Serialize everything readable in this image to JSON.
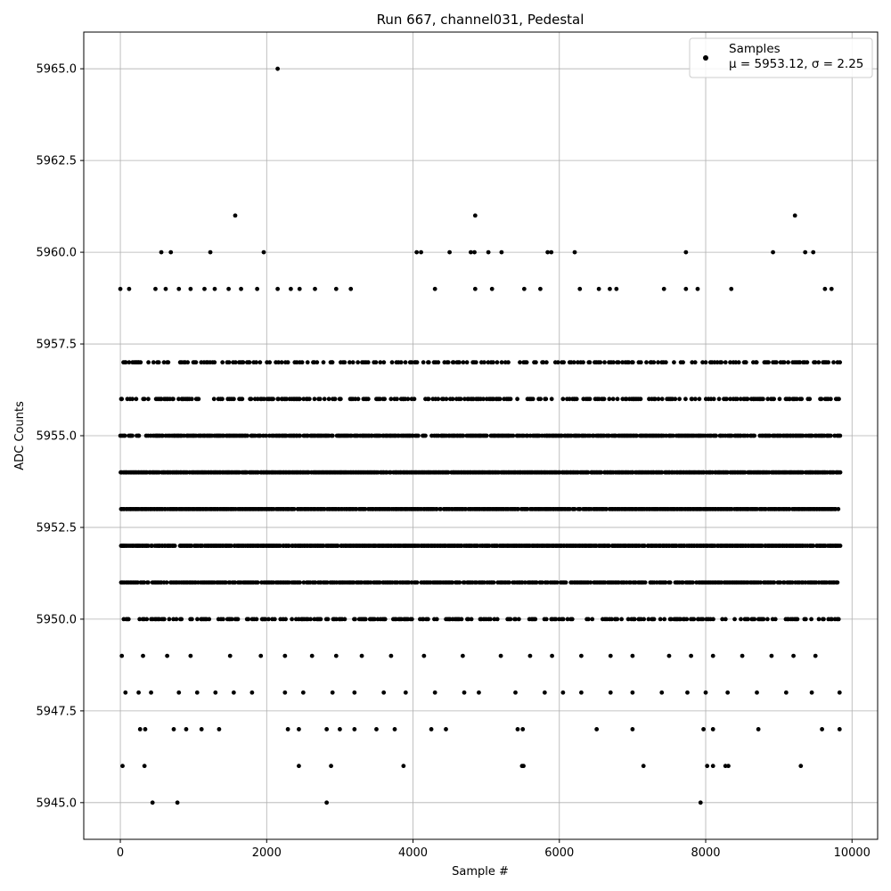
{
  "chart_data": {
    "type": "scatter",
    "title": "Run 667, channel031, Pedestal",
    "xlabel": "Sample #",
    "ylabel": "ADC Counts",
    "xlim": [
      -500,
      10350
    ],
    "ylim": [
      5944,
      5966
    ],
    "x_ticks": [
      0,
      2000,
      4000,
      6000,
      8000,
      10000
    ],
    "y_ticks": [
      5945.0,
      5947.5,
      5950.0,
      5952.5,
      5955.0,
      5957.5,
      5960.0,
      5962.5,
      5965.0
    ],
    "x_tick_labels": [
      "0",
      "2000",
      "4000",
      "6000",
      "8000",
      "10000"
    ],
    "y_tick_labels": [
      "5945.0",
      "5947.5",
      "5950.0",
      "5952.5",
      "5955.0",
      "5957.5",
      "5960.0",
      "5962.5",
      "5965.0"
    ],
    "grid": true,
    "legend_position": "top-right",
    "point_color": "#000000",
    "series": [
      {
        "name": "Samples",
        "stats_label": "μ = 5953.12, σ = 2.25",
        "mean": 5953.12,
        "std": 2.25,
        "n_samples": 9830,
        "x_range": [
          0,
          9830
        ],
        "dense_levels": [
          5950,
          5951,
          5952,
          5953,
          5954,
          5955,
          5956,
          5957
        ],
        "points": [
          {
            "x": 2150,
            "y": 5965
          },
          {
            "x": 1570,
            "y": 5961
          },
          {
            "x": 4850,
            "y": 5961
          },
          {
            "x": 9220,
            "y": 5961
          },
          {
            "x": 560,
            "y": 5960
          },
          {
            "x": 690,
            "y": 5960
          },
          {
            "x": 1230,
            "y": 5960
          },
          {
            "x": 1960,
            "y": 5960
          },
          {
            "x": 4050,
            "y": 5960
          },
          {
            "x": 4110,
            "y": 5960
          },
          {
            "x": 4500,
            "y": 5960
          },
          {
            "x": 4790,
            "y": 5960
          },
          {
            "x": 4840,
            "y": 5960
          },
          {
            "x": 5030,
            "y": 5960
          },
          {
            "x": 5210,
            "y": 5960
          },
          {
            "x": 5840,
            "y": 5960
          },
          {
            "x": 5890,
            "y": 5960
          },
          {
            "x": 6210,
            "y": 5960
          },
          {
            "x": 7730,
            "y": 5960
          },
          {
            "x": 8920,
            "y": 5960
          },
          {
            "x": 9360,
            "y": 5960
          },
          {
            "x": 9470,
            "y": 5960
          },
          {
            "x": 0,
            "y": 5959
          },
          {
            "x": 120,
            "y": 5959
          },
          {
            "x": 480,
            "y": 5959
          },
          {
            "x": 620,
            "y": 5959
          },
          {
            "x": 800,
            "y": 5959
          },
          {
            "x": 960,
            "y": 5959
          },
          {
            "x": 1150,
            "y": 5959
          },
          {
            "x": 1290,
            "y": 5959
          },
          {
            "x": 1480,
            "y": 5959
          },
          {
            "x": 1650,
            "y": 5959
          },
          {
            "x": 1870,
            "y": 5959
          },
          {
            "x": 2150,
            "y": 5959
          },
          {
            "x": 2330,
            "y": 5959
          },
          {
            "x": 2450,
            "y": 5959
          },
          {
            "x": 2660,
            "y": 5959
          },
          {
            "x": 2950,
            "y": 5959
          },
          {
            "x": 3150,
            "y": 5959
          },
          {
            "x": 4300,
            "y": 5959
          },
          {
            "x": 4850,
            "y": 5959
          },
          {
            "x": 5080,
            "y": 5959
          },
          {
            "x": 5520,
            "y": 5959
          },
          {
            "x": 5740,
            "y": 5959
          },
          {
            "x": 6280,
            "y": 5959
          },
          {
            "x": 6540,
            "y": 5959
          },
          {
            "x": 6690,
            "y": 5959
          },
          {
            "x": 6780,
            "y": 5959
          },
          {
            "x": 7430,
            "y": 5959
          },
          {
            "x": 7730,
            "y": 5959
          },
          {
            "x": 7890,
            "y": 5959
          },
          {
            "x": 8350,
            "y": 5959
          },
          {
            "x": 9630,
            "y": 5959
          },
          {
            "x": 9720,
            "y": 5959
          },
          {
            "x": 20,
            "y": 5949
          },
          {
            "x": 310,
            "y": 5949
          },
          {
            "x": 640,
            "y": 5949
          },
          {
            "x": 960,
            "y": 5949
          },
          {
            "x": 1500,
            "y": 5949
          },
          {
            "x": 1920,
            "y": 5949
          },
          {
            "x": 2250,
            "y": 5949
          },
          {
            "x": 2620,
            "y": 5949
          },
          {
            "x": 2950,
            "y": 5949
          },
          {
            "x": 3300,
            "y": 5949
          },
          {
            "x": 3700,
            "y": 5949
          },
          {
            "x": 4150,
            "y": 5949
          },
          {
            "x": 4680,
            "y": 5949
          },
          {
            "x": 5200,
            "y": 5949
          },
          {
            "x": 5600,
            "y": 5949
          },
          {
            "x": 5900,
            "y": 5949
          },
          {
            "x": 6300,
            "y": 5949
          },
          {
            "x": 6700,
            "y": 5949
          },
          {
            "x": 7000,
            "y": 5949
          },
          {
            "x": 7500,
            "y": 5949
          },
          {
            "x": 7800,
            "y": 5949
          },
          {
            "x": 8100,
            "y": 5949
          },
          {
            "x": 8500,
            "y": 5949
          },
          {
            "x": 8900,
            "y": 5949
          },
          {
            "x": 9200,
            "y": 5949
          },
          {
            "x": 9500,
            "y": 5949
          },
          {
            "x": 70,
            "y": 5948
          },
          {
            "x": 250,
            "y": 5948
          },
          {
            "x": 420,
            "y": 5948
          },
          {
            "x": 800,
            "y": 5948
          },
          {
            "x": 1050,
            "y": 5948
          },
          {
            "x": 1300,
            "y": 5948
          },
          {
            "x": 1550,
            "y": 5948
          },
          {
            "x": 1800,
            "y": 5948
          },
          {
            "x": 2250,
            "y": 5948
          },
          {
            "x": 2500,
            "y": 5948
          },
          {
            "x": 2900,
            "y": 5948
          },
          {
            "x": 3200,
            "y": 5948
          },
          {
            "x": 3600,
            "y": 5948
          },
          {
            "x": 3900,
            "y": 5948
          },
          {
            "x": 4300,
            "y": 5948
          },
          {
            "x": 4700,
            "y": 5948
          },
          {
            "x": 4900,
            "y": 5948
          },
          {
            "x": 5400,
            "y": 5948
          },
          {
            "x": 5800,
            "y": 5948
          },
          {
            "x": 6050,
            "y": 5948
          },
          {
            "x": 6300,
            "y": 5948
          },
          {
            "x": 6700,
            "y": 5948
          },
          {
            "x": 7000,
            "y": 5948
          },
          {
            "x": 7400,
            "y": 5948
          },
          {
            "x": 7750,
            "y": 5948
          },
          {
            "x": 8000,
            "y": 5948
          },
          {
            "x": 8300,
            "y": 5948
          },
          {
            "x": 8700,
            "y": 5948
          },
          {
            "x": 9100,
            "y": 5948
          },
          {
            "x": 9450,
            "y": 5948
          },
          {
            "x": 9830,
            "y": 5948
          },
          {
            "x": 270,
            "y": 5947
          },
          {
            "x": 340,
            "y": 5947
          },
          {
            "x": 730,
            "y": 5947
          },
          {
            "x": 900,
            "y": 5947
          },
          {
            "x": 1110,
            "y": 5947
          },
          {
            "x": 1350,
            "y": 5947
          },
          {
            "x": 2290,
            "y": 5947
          },
          {
            "x": 2440,
            "y": 5947
          },
          {
            "x": 2820,
            "y": 5947
          },
          {
            "x": 3000,
            "y": 5947
          },
          {
            "x": 3200,
            "y": 5947
          },
          {
            "x": 3500,
            "y": 5947
          },
          {
            "x": 3750,
            "y": 5947
          },
          {
            "x": 4250,
            "y": 5947
          },
          {
            "x": 4450,
            "y": 5947
          },
          {
            "x": 5430,
            "y": 5947
          },
          {
            "x": 5500,
            "y": 5947
          },
          {
            "x": 6510,
            "y": 5947
          },
          {
            "x": 7000,
            "y": 5947
          },
          {
            "x": 7970,
            "y": 5947
          },
          {
            "x": 8100,
            "y": 5947
          },
          {
            "x": 8720,
            "y": 5947
          },
          {
            "x": 9590,
            "y": 5947
          },
          {
            "x": 9830,
            "y": 5947
          },
          {
            "x": 30,
            "y": 5946
          },
          {
            "x": 330,
            "y": 5946
          },
          {
            "x": 2440,
            "y": 5946
          },
          {
            "x": 2880,
            "y": 5946
          },
          {
            "x": 3870,
            "y": 5946
          },
          {
            "x": 5490,
            "y": 5946
          },
          {
            "x": 5510,
            "y": 5946
          },
          {
            "x": 7150,
            "y": 5946
          },
          {
            "x": 8020,
            "y": 5946
          },
          {
            "x": 8100,
            "y": 5946
          },
          {
            "x": 8270,
            "y": 5946
          },
          {
            "x": 8310,
            "y": 5946
          },
          {
            "x": 9300,
            "y": 5946
          },
          {
            "x": 440,
            "y": 5945
          },
          {
            "x": 780,
            "y": 5945
          },
          {
            "x": 2820,
            "y": 5945
          },
          {
            "x": 7930,
            "y": 5945
          }
        ]
      }
    ]
  }
}
